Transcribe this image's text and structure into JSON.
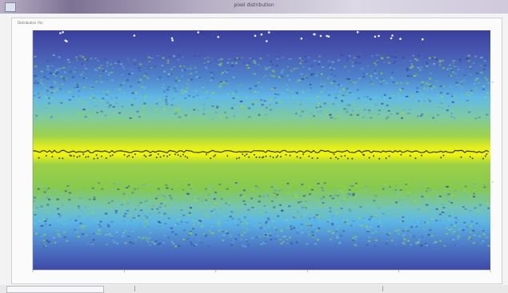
{
  "window": {
    "title": "pixel distribution"
  },
  "plot": {
    "header": "Distribution (%)",
    "y_top_label": "",
    "y_bottom_label": "",
    "y_mid_label": "",
    "x_label": ""
  },
  "colors": {
    "low_density": "#3a4aa6",
    "mid_density": "#5fbde8",
    "high_density": "#8dcb3a",
    "peak_density": "#eef012",
    "trace": "#2b3a2a",
    "window_titlebar": "#7d7194"
  },
  "icons": {
    "window": "window-app-icon"
  }
}
